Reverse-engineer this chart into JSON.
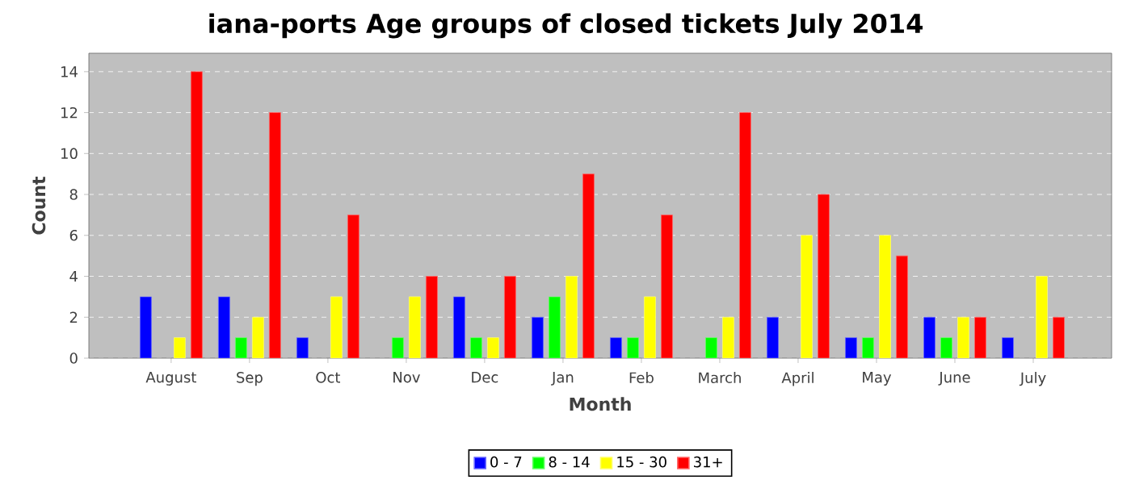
{
  "chart_data": {
    "type": "bar",
    "title": "iana-ports Age groups of closed tickets July 2014",
    "xlabel": "Month",
    "ylabel": "Count",
    "categories": [
      "August",
      "Sep",
      "Oct",
      "Nov",
      "Dec",
      "Jan",
      "Feb",
      "March",
      "April",
      "May",
      "June",
      "July"
    ],
    "series": [
      {
        "name": "0 - 7",
        "color": "#0000ff",
        "values": [
          3,
          3,
          1,
          null,
          3,
          2,
          1,
          null,
          2,
          1,
          2,
          1
        ]
      },
      {
        "name": "8 - 14",
        "color": "#00ff00",
        "values": [
          null,
          1,
          null,
          1,
          1,
          3,
          1,
          1,
          null,
          1,
          1,
          null
        ]
      },
      {
        "name": "15 - 30",
        "color": "#ffff00",
        "values": [
          1,
          2,
          3,
          3,
          1,
          4,
          3,
          2,
          6,
          6,
          2,
          4
        ]
      },
      {
        "name": "31+",
        "color": "#ff0000",
        "values": [
          14,
          12,
          7,
          4,
          4,
          9,
          7,
          12,
          8,
          5,
          2,
          2
        ]
      }
    ],
    "ylim": [
      0,
      14.9
    ],
    "yticks": [
      0,
      2,
      4,
      6,
      8,
      10,
      12,
      14
    ],
    "grid": "y",
    "legend": "bottom"
  }
}
